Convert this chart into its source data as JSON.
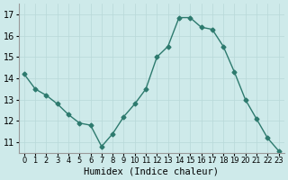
{
  "x": [
    0,
    1,
    2,
    3,
    4,
    5,
    6,
    7,
    8,
    9,
    10,
    11,
    12,
    13,
    14,
    15,
    16,
    17,
    18,
    19,
    20,
    21,
    22,
    23
  ],
  "y": [
    14.2,
    13.5,
    13.2,
    12.8,
    12.3,
    11.9,
    11.8,
    10.8,
    11.4,
    12.2,
    12.8,
    13.5,
    15.0,
    15.5,
    16.85,
    16.85,
    16.4,
    16.3,
    15.5,
    14.3,
    13.0,
    12.1,
    11.2,
    10.6
  ],
  "line_color": "#2d7a6e",
  "marker": "D",
  "marker_size": 2.5,
  "bg_color": "#ceeaea",
  "grid_color": "#b8d8d8",
  "xlabel": "Humidex (Indice chaleur)",
  "xlim": [
    -0.5,
    23.5
  ],
  "ylim": [
    10.5,
    17.5
  ],
  "yticks": [
    11,
    12,
    13,
    14,
    15,
    16,
    17
  ],
  "xticks": [
    0,
    1,
    2,
    3,
    4,
    5,
    6,
    7,
    8,
    9,
    10,
    11,
    12,
    13,
    14,
    15,
    16,
    17,
    18,
    19,
    20,
    21,
    22,
    23
  ],
  "linewidth": 1.0
}
